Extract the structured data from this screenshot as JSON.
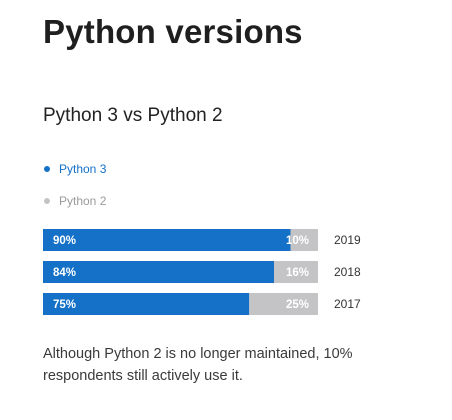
{
  "page": {
    "title": "Python versions",
    "note": "Although Python 2 is no longer maintained, 10% respondents still actively use it."
  },
  "colors": {
    "python3": "#1471c7",
    "python2": "#c4c4c7",
    "legend_python3_text": "#1471c7",
    "legend_python2_text": "#9a9a9a",
    "bar_label": "#ffffff",
    "year_label": "#333333"
  },
  "chart_data": {
    "type": "bar",
    "orientation": "horizontal",
    "stacked": true,
    "normalized": "percent",
    "title": "Python 3 vs Python 2",
    "categories": [
      "2019",
      "2018",
      "2017"
    ],
    "series": [
      {
        "name": "Python 3",
        "values": [
          90,
          84,
          75
        ],
        "labels": [
          "90%",
          "84%",
          "75%"
        ]
      },
      {
        "name": "Python 2",
        "values": [
          10,
          16,
          25
        ],
        "labels": [
          "10%",
          "16%",
          "25%"
        ]
      }
    ],
    "xlim": [
      0,
      100
    ],
    "grid": false,
    "legend": "top-left, vertical",
    "xlabel": "",
    "ylabel": ""
  }
}
